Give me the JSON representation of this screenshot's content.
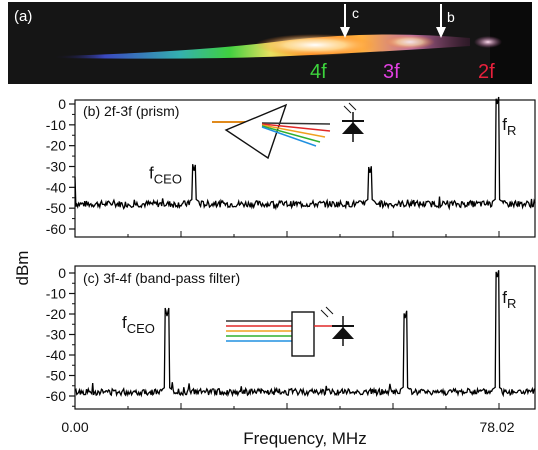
{
  "figure": {
    "photo": {
      "panel_label": "(a)",
      "arrow_c": "c",
      "arrow_b": "b",
      "band_4f": "4f",
      "band_3f": "3f",
      "band_2f": "2f",
      "colors": {
        "band_4f": "#3cd23c",
        "band_3f": "#e040e0",
        "band_2f": "#e8203c"
      }
    },
    "ylabel": "dBm",
    "xlabel": "Frequency, MHz",
    "x_ticks": [
      "0.00",
      "78.02"
    ]
  },
  "chart_data": [
    {
      "type": "line",
      "panel": "(b) 2f-3f (prism)",
      "ylim": [
        -65,
        0
      ],
      "y_ticks": [
        "0",
        "-10",
        "-20",
        "-30",
        "-40",
        "-50",
        "-60"
      ],
      "xlim": [
        0,
        85
      ],
      "noise_floor": -48,
      "peaks": [
        {
          "x": 22.0,
          "y": -32,
          "label": "f",
          "sub": "CEO"
        },
        {
          "x": 54.5,
          "y": -33
        },
        {
          "x": 78.02,
          "y": 0,
          "label": "f",
          "sub": "R"
        }
      ]
    },
    {
      "type": "line",
      "panel": "(c) 3f-4f (band-pass filter)",
      "ylim": [
        -65,
        0
      ],
      "y_ticks": [
        "0",
        "-10",
        "-20",
        "-30",
        "-40",
        "-50",
        "-60"
      ],
      "xlim": [
        0,
        85
      ],
      "noise_floor": -58,
      "peaks": [
        {
          "x": 17.0,
          "y": -21,
          "label": "f",
          "sub": "CEO"
        },
        {
          "x": 61.0,
          "y": -22
        },
        {
          "x": 78.02,
          "y": -2,
          "label": "f",
          "sub": "R"
        }
      ]
    }
  ]
}
